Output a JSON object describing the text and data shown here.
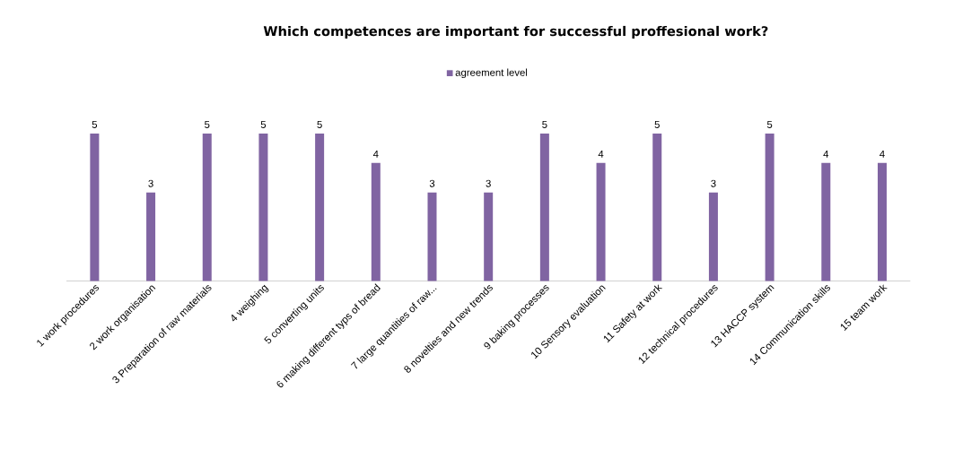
{
  "chart_data": {
    "type": "bar",
    "title": "Which competences are important for successful proffesional work?",
    "categories": [
      "1 work procedures",
      "2 work organisation",
      "3 Preparation of raw materials",
      "4 weighing",
      "5 converting units",
      "6 making different typs of bread",
      "7 large quantities of raw...",
      "8 novelties and new trends",
      "9 baking processes",
      "10 Sensory evaluation",
      "11 Safety at work",
      "12 technical procedures",
      "13 HACCP system",
      "14 Communication skills",
      "15 team work"
    ],
    "series": [
      {
        "name": "agreement level",
        "color": "#8064a2",
        "values": [
          5,
          3,
          5,
          5,
          5,
          4,
          3,
          3,
          5,
          4,
          5,
          3,
          5,
          4,
          4
        ]
      }
    ],
    "data_labels": true,
    "legend": "top",
    "tick_labels": "x"
  }
}
